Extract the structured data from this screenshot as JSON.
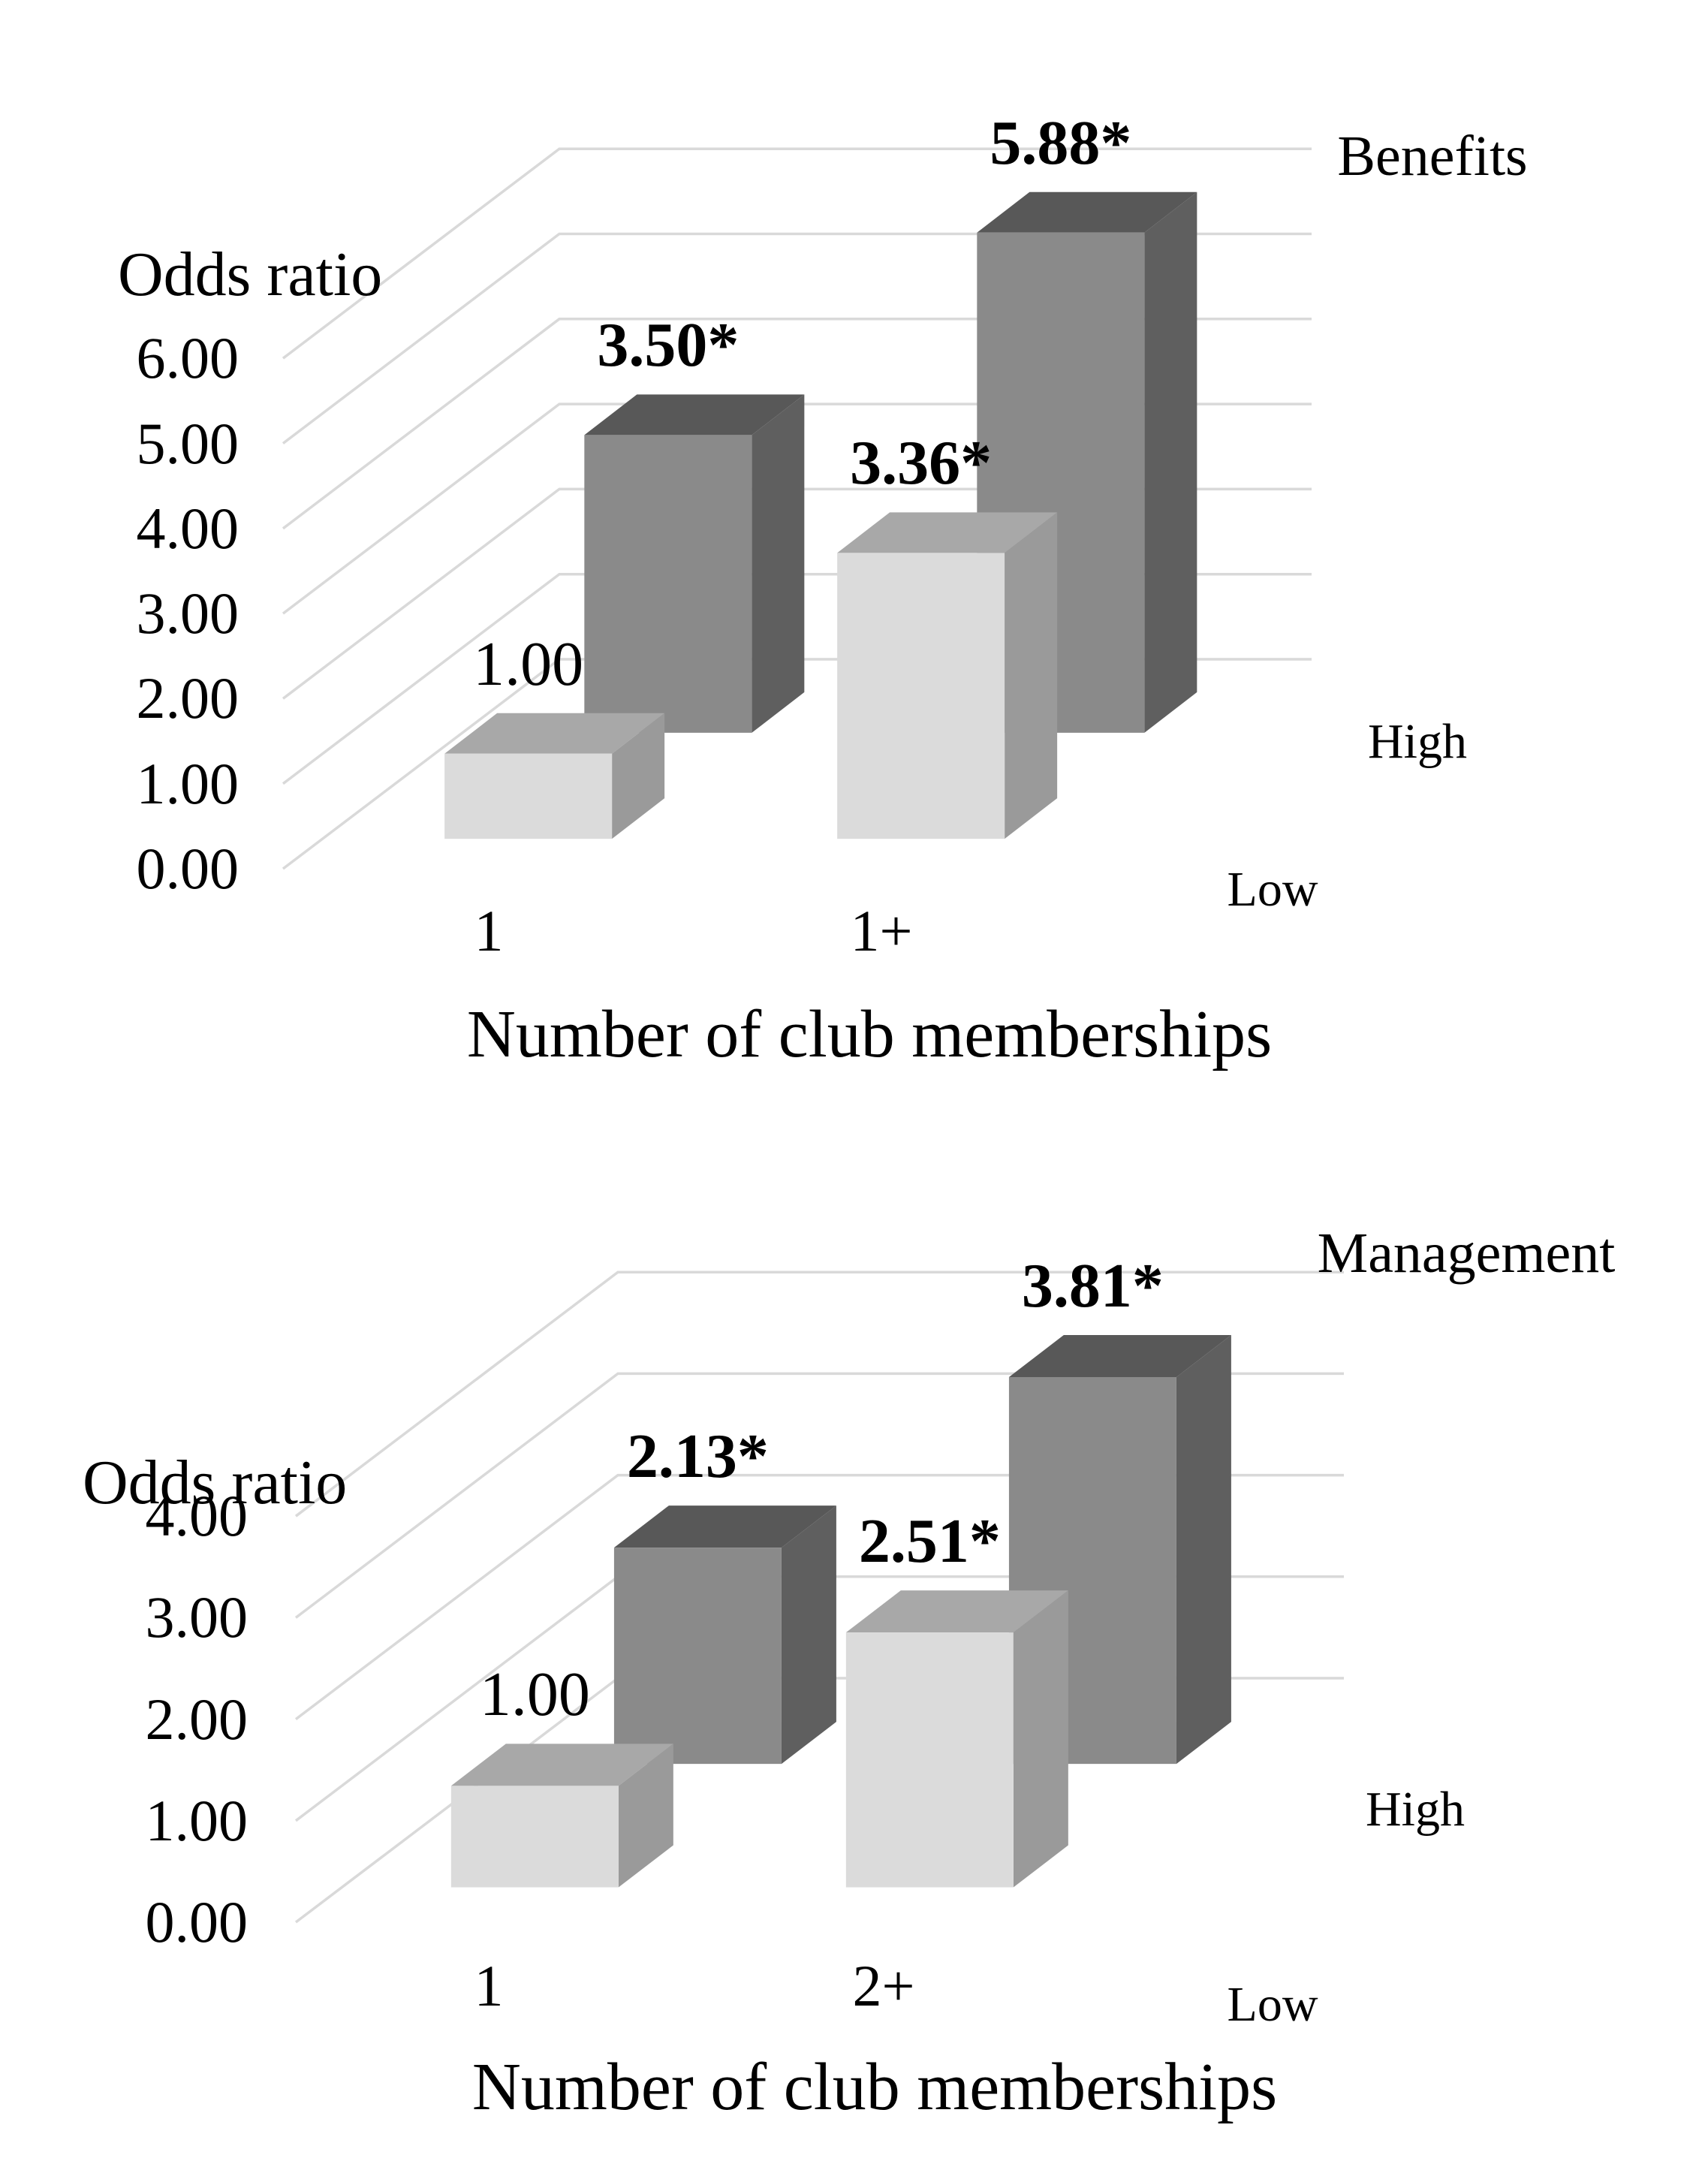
{
  "page": {
    "background": "#ffffff",
    "text_color": "#000000"
  },
  "chart_data": [
    {
      "type": "bar",
      "projection": "3d-column",
      "title": "Benefits",
      "y_axis_title": "Odds ratio",
      "x_axis_title": "Number of club memberships",
      "categories": [
        "1",
        "1+"
      ],
      "series": [
        {
          "name": "Low",
          "row": "front",
          "values": [
            1.0,
            3.36
          ],
          "value_labels": [
            "1.00",
            "3.36*"
          ],
          "color_front": "#dbdbdb",
          "color_top": "#a8a8a8",
          "color_side": "#9a9a9a"
        },
        {
          "name": "High",
          "row": "back",
          "values": [
            3.5,
            5.88
          ],
          "value_labels": [
            "3.50*",
            "5.88*"
          ],
          "color_front": "#8a8a8a",
          "color_top": "#585858",
          "color_side": "#5f5f5f"
        }
      ],
      "ylim": [
        0,
        6
      ],
      "y_ticks": [
        "0.00",
        "1.00",
        "2.00",
        "3.00",
        "4.00",
        "5.00",
        "6.00"
      ],
      "depth_axis_labels": {
        "back": "High",
        "front": "Low"
      },
      "gridline_color": "#d9d9d9",
      "grid": true,
      "legend_position": "none"
    },
    {
      "type": "bar",
      "projection": "3d-column",
      "title": "Management",
      "y_axis_title": "Odds ratio",
      "x_axis_title": "Number of club memberships",
      "categories": [
        "1",
        "2+"
      ],
      "series": [
        {
          "name": "Low",
          "row": "front",
          "values": [
            1.0,
            2.51
          ],
          "value_labels": [
            "1.00",
            "2.51*"
          ],
          "color_front": "#dbdbdb",
          "color_top": "#a8a8a8",
          "color_side": "#9a9a9a"
        },
        {
          "name": "High",
          "row": "back",
          "values": [
            2.13,
            3.81
          ],
          "value_labels": [
            "2.13*",
            "3.81*"
          ],
          "color_front": "#8a8a8a",
          "color_top": "#585858",
          "color_side": "#5f5f5f"
        }
      ],
      "ylim": [
        0,
        4
      ],
      "y_ticks": [
        "0.00",
        "1.00",
        "2.00",
        "3.00",
        "4.00"
      ],
      "depth_axis_labels": {
        "back": "High",
        "front": "Low"
      },
      "gridline_color": "#d9d9d9",
      "grid": true,
      "legend_position": "none"
    }
  ]
}
